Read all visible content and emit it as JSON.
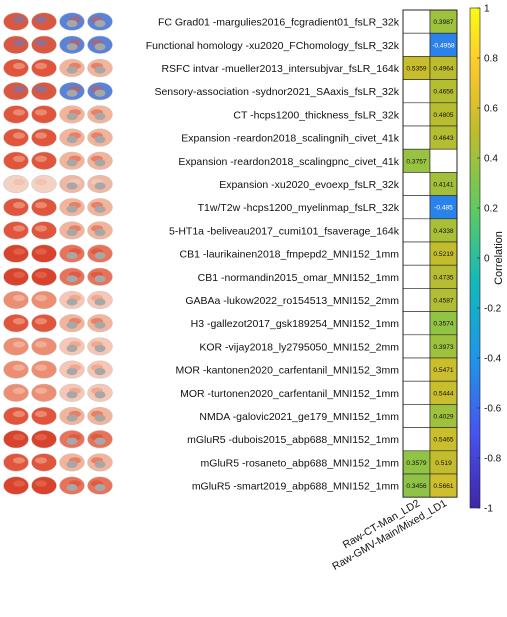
{
  "chart_data": {
    "type": "heatmap",
    "columns": [
      "Raw-CT-Man_LD2",
      "Raw-GMV-Main/Mixed_LD1"
    ],
    "rows": [
      "FC Grad01 -margulies2016_fcgradient01_fsLR_32k",
      "Functional homology -xu2020_FChomology_fsLR_32k",
      "RSFC intvar -mueller2013_intersubjvar_fsLR_164k",
      "Sensory-association -sydnor2021_SAaxis_fsLR_32k",
      "CT -hcps1200_thickness_fsLR_32k",
      "Expansion -reardon2018_scalingnih_civet_41k",
      "Expansion -reardon2018_scalingpnc_civet_41k",
      "Expansion -xu2020_evoexp_fsLR_32k",
      "T1w/T2w -hcps1200_myelinmap_fsLR_32k",
      "5-HT1a -beliveau2017_cumi101_fsaverage_164k",
      "CB1 -laurikainen2018_fmpepd2_MNI152_1mm",
      "CB1 -normandin2015_omar_MNI152_1mm",
      "GABAa -lukow2022_ro154513_MNI152_2mm",
      "H3 -gallezot2017_gsk189254_MNI152_1mm",
      "KOR -vijay2018_ly2795050_MNI152_2mm",
      "MOR -kantonen2020_carfentanil_MNI152_3mm",
      "MOR -turtonen2020_carfentanil_MNI152_1mm",
      "NMDA -galovic2021_ge179_MNI152_1mm",
      "mGluR5 -dubois2015_abp688_MNI152_1mm",
      "mGluR5 -rosaneto_abp688_MNI152_1mm",
      "mGluR5 -smart2019_abp688_MNI152_1mm"
    ],
    "values": [
      [
        null,
        0.3987
      ],
      [
        null,
        -0.4958
      ],
      [
        0.5359,
        0.4964
      ],
      [
        null,
        0.4656
      ],
      [
        null,
        0.4805
      ],
      [
        null,
        0.4643
      ],
      [
        0.3757,
        null
      ],
      [
        null,
        0.4141
      ],
      [
        null,
        -0.485
      ],
      [
        null,
        0.4338
      ],
      [
        null,
        0.5219
      ],
      [
        null,
        0.4735
      ],
      [
        null,
        0.4587
      ],
      [
        null,
        0.3574
      ],
      [
        null,
        0.3973
      ],
      [
        null,
        0.5471
      ],
      [
        null,
        0.5444
      ],
      [
        null,
        0.4029
      ],
      [
        null,
        0.5465
      ],
      [
        0.3579,
        0.519
      ],
      [
        0.3456,
        0.5661
      ]
    ],
    "value_labels": [
      [
        "",
        "0.3987"
      ],
      [
        "",
        "-0.4958"
      ],
      [
        "0.5359",
        "0.4964"
      ],
      [
        "",
        "0.4656"
      ],
      [
        "",
        "0.4805"
      ],
      [
        "",
        "0.4643"
      ],
      [
        "0.3757",
        ""
      ],
      [
        "",
        "0.4141"
      ],
      [
        "",
        "-0.485"
      ],
      [
        "",
        "0.4338"
      ],
      [
        "",
        "0.5219"
      ],
      [
        "",
        "0.4735"
      ],
      [
        "",
        "0.4587"
      ],
      [
        "",
        "0.3574"
      ],
      [
        "",
        "0.3973"
      ],
      [
        "",
        "0.5471"
      ],
      [
        "",
        "0.5444"
      ],
      [
        "",
        "0.4029"
      ],
      [
        "",
        "0.5465"
      ],
      [
        "0.3579",
        "0.519"
      ],
      [
        "0.3456",
        "0.5661"
      ]
    ],
    "color_range": [
      -1,
      1
    ],
    "colorbar_label": "Correlation",
    "colorbar_ticks": [
      "1",
      "0.8",
      "0.6",
      "0.4",
      "0.2",
      "0",
      "-0.2",
      "-0.4",
      "-0.6",
      "-0.8",
      "-1"
    ],
    "colormap": "parula",
    "empty_cell_color": "#ffffff",
    "brain_map_thumbnails": true
  }
}
